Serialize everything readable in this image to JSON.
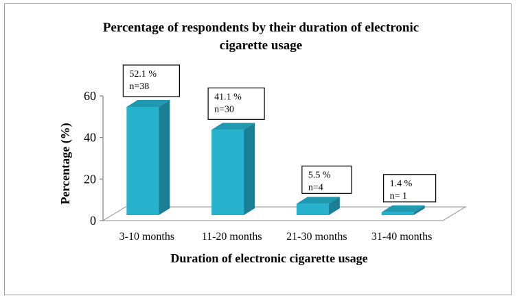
{
  "chart_data": {
    "type": "bar",
    "title_line1": "Percentage of respondents by their duration of electronic",
    "title_line2": "cigarette usage",
    "xlabel": "Duration of electronic cigarette usage",
    "ylabel": "Percentage (%)",
    "categories": [
      "3-10 months",
      "11-20 months",
      "21-30 months",
      "31-40 months"
    ],
    "values": [
      52.1,
      41.1,
      5.5,
      1.4
    ],
    "data_labels": [
      {
        "pct": "52.1 %",
        "n": "n=38"
      },
      {
        "pct": "41.1 %",
        "n": "n=30"
      },
      {
        "pct": "5.5 %",
        "n": "n=4"
      },
      {
        "pct": "1.4 %",
        "n": "n= 1"
      }
    ],
    "ylim": [
      0,
      60
    ],
    "yticks": [
      "0",
      "20",
      "40",
      "60"
    ],
    "grid": false,
    "legend": "none",
    "bar_color": "#26b2cc",
    "bar_side_color": "#1a7e94",
    "bar_top_color": "#1f98b0"
  }
}
